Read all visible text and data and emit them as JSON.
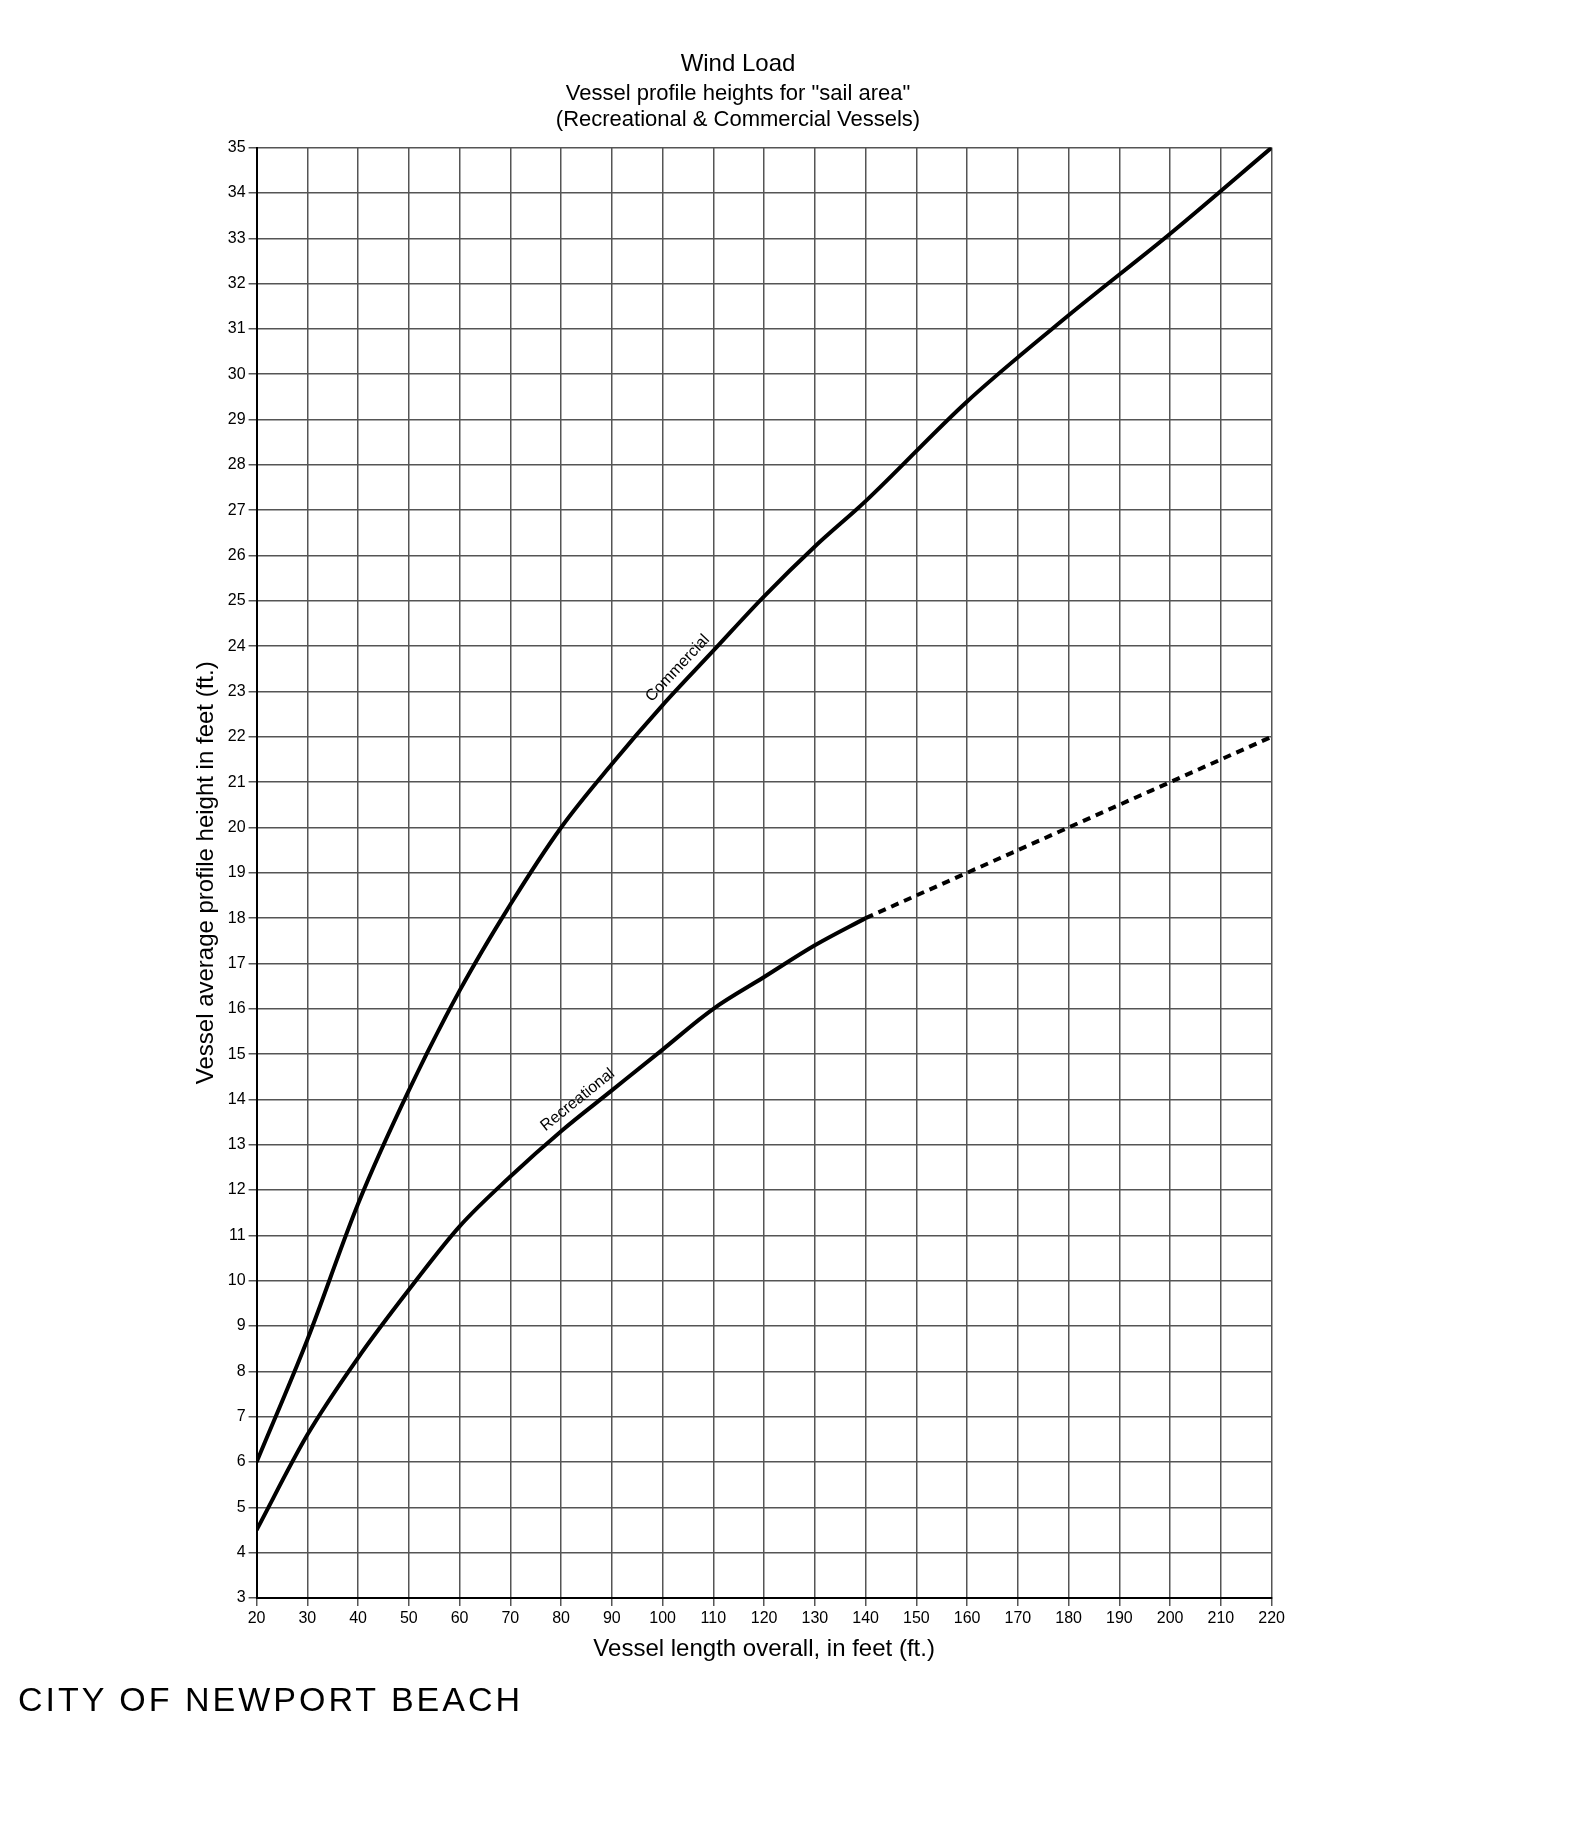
{
  "chart_data": {
    "type": "line",
    "title": "Wind Load",
    "subtitle": "Vessel profile heights for \"sail area\"\n(Recreational & Commercial Vessels)",
    "xlabel": "Vessel length overall, in feet (ft.)",
    "ylabel": "Vessel average profile height in feet (ft.)",
    "annotations": [
      "CITY OF NEWPORT BEACH"
    ],
    "xlim": [
      20,
      220
    ],
    "xticks": [
      20,
      30,
      40,
      50,
      60,
      70,
      80,
      90,
      100,
      110,
      120,
      130,
      140,
      150,
      160,
      170,
      180,
      190,
      200,
      210,
      220
    ],
    "ylim": [
      3,
      35
    ],
    "yticks": [
      3,
      4,
      5,
      6,
      7,
      8,
      9,
      10,
      11,
      12,
      13,
      14,
      15,
      16,
      17,
      18,
      19,
      20,
      21,
      22,
      23,
      24,
      25,
      26,
      27,
      28,
      29,
      30,
      31,
      32,
      33,
      34,
      35
    ],
    "grid": true,
    "legend": false,
    "marker": "none",
    "series": [
      {
        "name": "Commercial",
        "color": "#000000",
        "line_style": "solid",
        "x": [
          20,
          30,
          40,
          50,
          60,
          70,
          80,
          90,
          100,
          110,
          120,
          130,
          140,
          160,
          180,
          200,
          220
        ],
        "values": [
          6,
          8.7,
          11.7,
          14.2,
          16.4,
          18.3,
          20,
          21.4,
          22.7,
          23.9,
          25.1,
          26.2,
          27.2,
          29.4,
          31.3,
          33.1,
          35
        ]
      },
      {
        "name": "Recreational",
        "color": "#000000",
        "line_style": "solid",
        "x": [
          20,
          30,
          40,
          50,
          60,
          70,
          80,
          90,
          100,
          110,
          120,
          130,
          140
        ],
        "values": [
          4.5,
          6.6,
          8.3,
          9.8,
          11.2,
          12.3,
          13.3,
          14.2,
          15.1,
          16,
          16.7,
          17.4,
          18
        ]
      },
      {
        "color": "#000000",
        "line_style": "dashed",
        "x": [
          140,
          160,
          180,
          200,
          220
        ],
        "values": [
          18,
          19,
          20,
          21,
          22
        ]
      }
    ]
  }
}
